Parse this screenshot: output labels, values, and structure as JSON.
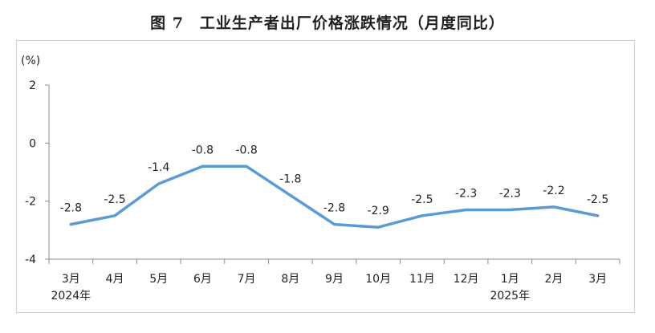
{
  "title": "图 7　工业生产者出厂价格涨跌情况（月度同比）",
  "chart_data": {
    "type": "line",
    "title": "图 7　工业生产者出厂价格涨跌情况（月度同比）",
    "unit_label": "(%)",
    "categories": [
      "3月",
      "4月",
      "5月",
      "6月",
      "7月",
      "8月",
      "9月",
      "10月",
      "11月",
      "12月",
      "1月",
      "2月",
      "3月"
    ],
    "year_labels": [
      {
        "index": 0,
        "text": "2024年"
      },
      {
        "index": 10,
        "text": "2025年"
      }
    ],
    "series": [
      {
        "values": [
          -2.8,
          -2.5,
          -1.4,
          -0.8,
          -0.8,
          -1.8,
          -2.8,
          -2.9,
          -2.5,
          -2.3,
          -2.3,
          -2.2,
          -2.5
        ],
        "color": "#5b9bd5"
      }
    ],
    "data_labels": [
      "-2.8",
      "-2.5",
      "-1.4",
      "-0.8",
      "-0.8",
      "-1.8",
      "-2.8",
      "-2.9",
      "-2.5",
      "-2.3",
      "-2.3",
      "-2.2",
      "-2.5"
    ],
    "yticks": [
      "2",
      "0",
      "-2",
      "-4"
    ],
    "ytick_values": [
      2,
      0,
      -2,
      -4
    ],
    "ylim": [
      -4,
      2
    ],
    "grid": false,
    "legend": "none"
  }
}
